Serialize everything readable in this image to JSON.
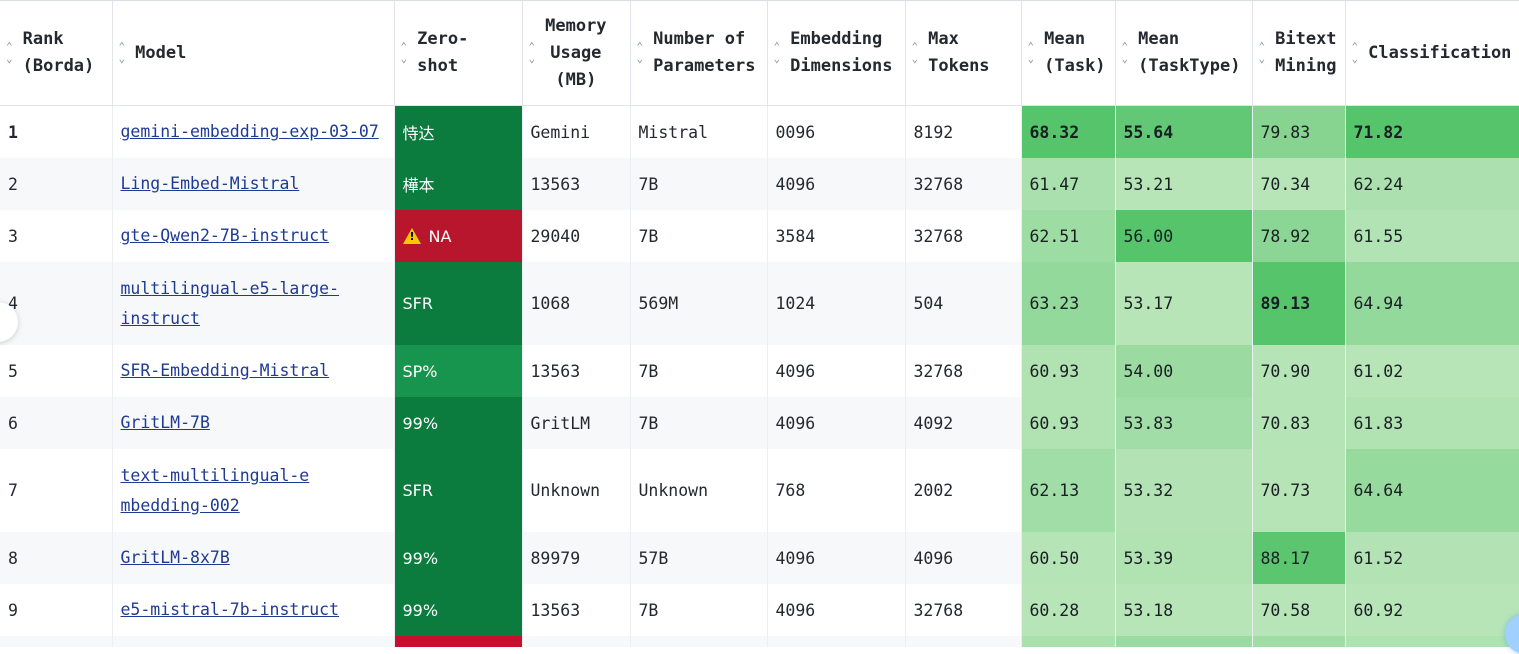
{
  "table": {
    "headers": [
      {
        "key": "rank",
        "label": "Rank\n(Borda)"
      },
      {
        "key": "model",
        "label": "Model"
      },
      {
        "key": "zero_shot",
        "label": "Zero-\nshot"
      },
      {
        "key": "memory",
        "label": "Memory\nUsage\n(MB)"
      },
      {
        "key": "params",
        "label": "Number of\nParameters"
      },
      {
        "key": "emb_dim",
        "label": "Embedding\nDimensions"
      },
      {
        "key": "max_tokens",
        "label": "Max\nTokens"
      },
      {
        "key": "mean_task",
        "label": "Mean\n(Task)"
      },
      {
        "key": "mean_tasktype",
        "label": "Mean\n(TaskType)"
      },
      {
        "key": "bitext",
        "label": "Bitext\nMining"
      },
      {
        "key": "classification",
        "label": "Classification"
      }
    ],
    "rows": [
      {
        "rank": "1",
        "model": "gemini-embedding-exp-03-07",
        "zero_shot": "恃达",
        "zs_color": "#0b7c3e",
        "memory": "Gemini",
        "params": "Mistral",
        "emb_dim": "0096",
        "max_tokens": "8192",
        "mean_task": "68.32",
        "mean_tasktype": "55.64",
        "bitext": "79.83",
        "classification": "71.82"
      },
      {
        "rank": "2",
        "model": "Ling-Embed-Mistral",
        "zero_shot": "樺本",
        "zs_color": "#0b7c3e",
        "memory": "13563",
        "params": "7B",
        "emb_dim": "4096",
        "max_tokens": "32768",
        "mean_task": "61.47",
        "mean_tasktype": "53.21",
        "bitext": "70.34",
        "classification": "62.24"
      },
      {
        "rank": "3",
        "model": "gte-Qwen2-7B-instruct",
        "zero_shot": "NA",
        "zs_color": "#b8162d",
        "memory": "29040",
        "params": "7B",
        "emb_dim": "3584",
        "max_tokens": "32768",
        "mean_task": "62.51",
        "mean_tasktype": "56.00",
        "bitext": "78.92",
        "classification": "61.55"
      },
      {
        "rank": "4",
        "model": "multilingual-e5-large-instruct",
        "zero_shot": "SFR",
        "zs_color": "#0b7c3e",
        "memory": "1068",
        "params": "569M",
        "emb_dim": "1024",
        "max_tokens": "504",
        "mean_task": "63.23",
        "mean_tasktype": "53.17",
        "bitext": "89.13",
        "classification": "64.94"
      },
      {
        "rank": "5",
        "model": "SFR-Embedding-Mistral",
        "zero_shot": "SP%",
        "zs_color": "#17954e",
        "memory": "13563",
        "params": "7B",
        "emb_dim": "4096",
        "max_tokens": "32768",
        "mean_task": "60.93",
        "mean_tasktype": "54.00",
        "bitext": "70.90",
        "classification": "61.02"
      },
      {
        "rank": "6",
        "model": "GritLM-7B",
        "zero_shot": "99%",
        "zs_color": "#0b7c3e",
        "memory": "GritLM",
        "params": "7B",
        "emb_dim": "4096",
        "max_tokens": "4092",
        "mean_task": "60.93",
        "mean_tasktype": "53.83",
        "bitext": "70.83",
        "classification": "61.83"
      },
      {
        "rank": "7",
        "model": "text-multilingual-embedding-002",
        "zero_shot": "SFR",
        "zs_color": "#0b7c3e",
        "memory": "Unknown",
        "params": "Unknown",
        "emb_dim": "768",
        "max_tokens": "2002",
        "mean_task": "62.13",
        "mean_tasktype": "53.32",
        "bitext": "70.73",
        "classification": "64.64"
      },
      {
        "rank": "8",
        "model": "GritLM-8x7B",
        "zero_shot": "99%",
        "zs_color": "#0b7c3e",
        "memory": "89979",
        "params": "57B",
        "emb_dim": "4096",
        "max_tokens": "4096",
        "mean_task": "60.50",
        "mean_tasktype": "53.39",
        "bitext": "88.17",
        "classification": "61.52"
      },
      {
        "rank": "9",
        "model": "e5-mistral-7b-instruct",
        "zero_shot": "99%",
        "zs_color": "#0b7c3e",
        "memory": "13563",
        "params": "7B",
        "emb_dim": "4096",
        "max_tokens": "32768",
        "mean_task": "60.28",
        "mean_tasktype": "53.18",
        "bitext": "70.58",
        "classification": "60.92"
      }
    ]
  },
  "colors": {
    "heat_strong": "#56c46b",
    "heat_weak": "#b8e5b8",
    "link": "#1f3a93",
    "zs_green": "#0b7c3e",
    "zs_red": "#b8162d"
  },
  "icons": {
    "sort": "sort-arrows-icon",
    "warning": "warning-triangle-icon"
  }
}
